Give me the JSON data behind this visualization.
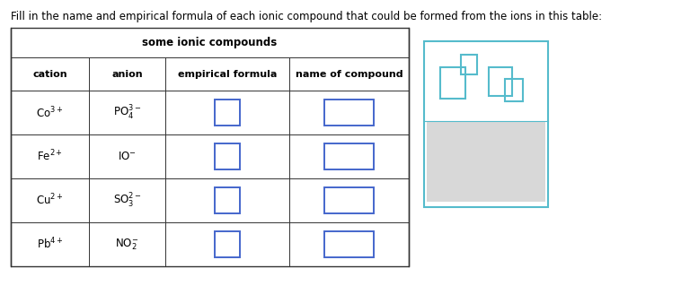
{
  "title_text": "Fill in the name and empirical formula of each ionic compound that could be formed from the ions in this table:",
  "table_title": "some ionic compounds",
  "col_headers": [
    "cation",
    "anion",
    "empirical formula",
    "name of compound"
  ],
  "rows": [
    {
      "cation": "Co$^{3+}$",
      "anion": "PO$_4^{3-}$"
    },
    {
      "cation": "Fe$^{2+}$",
      "anion": "IO$^{-}$"
    },
    {
      "cation": "Cu$^{2+}$",
      "anion": "SO$_3^{2-}$"
    },
    {
      "cation": "Pb$^{4+}$",
      "anion": "NO$_2^{-}$"
    }
  ],
  "bg_color": "white",
  "table_edge_color": "#333333",
  "input_box_color": "#4466cc",
  "widget_border_color": "#55bbcc",
  "widget_bg_color": "#d8d8d8",
  "widget_icon_color": "#55bbcc",
  "widget_btn_color": "#888888",
  "font_size_title": 8.5,
  "font_size_table_title": 8.5,
  "font_size_header": 8.0,
  "font_size_cell": 8.5
}
